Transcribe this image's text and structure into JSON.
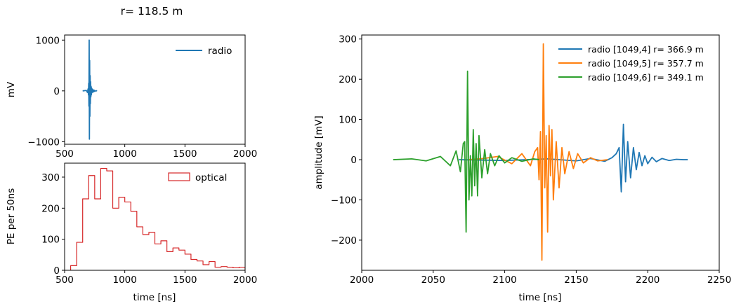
{
  "figure_title": "r= 118.5 m",
  "chart_data": [
    {
      "type": "line",
      "id": "radio-small",
      "xlabel": "",
      "ylabel": "mV",
      "xlim": [
        500,
        2000
      ],
      "ylim": [
        -1050,
        1100
      ],
      "xticks": [
        500,
        1000,
        1500,
        2000
      ],
      "yticks": [
        -1000,
        0,
        1000
      ],
      "xtick_labels": [
        "500",
        "1000",
        "1500",
        "2000"
      ],
      "ytick_labels": [
        "−1000",
        "0",
        "1000"
      ],
      "legend": "top-right",
      "series": [
        {
          "name": "radio",
          "color": "#1f77b4",
          "x": [
            650,
            680,
            690,
            695,
            698,
            700,
            702,
            704,
            706,
            708,
            710,
            712,
            714,
            716,
            718,
            720,
            722,
            724,
            726,
            728,
            730,
            735,
            740,
            745,
            750,
            760,
            770
          ],
          "y": [
            0,
            10,
            -30,
            40,
            -80,
            150,
            -300,
            1000,
            -950,
            600,
            -500,
            300,
            -250,
            180,
            -120,
            90,
            -80,
            60,
            -40,
            40,
            -30,
            25,
            -20,
            15,
            -10,
            5,
            0
          ]
        }
      ]
    },
    {
      "type": "histogram",
      "id": "optical",
      "xlabel": "time [ns]",
      "ylabel": "PE per 50ns",
      "xlim": [
        500,
        2000
      ],
      "ylim": [
        0,
        345
      ],
      "xticks": [
        500,
        1000,
        1500,
        2000
      ],
      "yticks": [
        0,
        100,
        200,
        300
      ],
      "xtick_labels": [
        "500",
        "1000",
        "1500",
        "2000"
      ],
      "ytick_labels": [
        "0",
        "100",
        "200",
        "300"
      ],
      "legend": "top-right",
      "series": [
        {
          "name": "optical",
          "color": "#d62728",
          "bin_edges": [
            550,
            600,
            650,
            700,
            750,
            800,
            850,
            900,
            950,
            1000,
            1050,
            1100,
            1150,
            1200,
            1250,
            1300,
            1350,
            1400,
            1450,
            1500,
            1550,
            1600,
            1650,
            1700,
            1750,
            1800,
            1850,
            1900,
            1950,
            2000
          ],
          "counts": [
            15,
            90,
            230,
            305,
            230,
            328,
            320,
            200,
            235,
            220,
            190,
            140,
            115,
            122,
            85,
            95,
            60,
            72,
            65,
            52,
            35,
            30,
            18,
            28,
            10,
            12,
            10,
            8,
            10
          ]
        }
      ]
    },
    {
      "type": "line",
      "id": "radio-large",
      "xlabel": "time [ns]",
      "ylabel": "amplitude [mV]",
      "xlim": [
        2000,
        2250
      ],
      "ylim": [
        -275,
        310
      ],
      "xticks": [
        2000,
        2050,
        2100,
        2150,
        2200,
        2250
      ],
      "yticks": [
        -200,
        -100,
        0,
        100,
        200,
        300
      ],
      "xtick_labels": [
        "2000",
        "2050",
        "2100",
        "2150",
        "2200",
        "2250"
      ],
      "ytick_labels": [
        "−200",
        "−100",
        "0",
        "100",
        "200",
        "300"
      ],
      "legend": "top-right",
      "series": [
        {
          "name": "radio [1049,4] r= 366.9 m",
          "color": "#1f77b4",
          "x": [
            2068,
            2100,
            2130,
            2150,
            2160,
            2170,
            2175,
            2178,
            2180,
            2181.5,
            2183,
            2184.5,
            2186,
            2188,
            2190,
            2192,
            2194,
            2196,
            2198,
            2200,
            2203,
            2206,
            2210,
            2215,
            2220,
            2225,
            2228
          ],
          "y": [
            0,
            -2,
            2,
            -3,
            3,
            -4,
            5,
            15,
            30,
            -80,
            88,
            -55,
            45,
            -45,
            30,
            -25,
            18,
            -15,
            10,
            -10,
            6,
            -5,
            3,
            -2,
            1,
            0,
            0
          ]
        },
        {
          "name": "radio [1049,5] r= 357.7 m",
          "color": "#ff7f0e",
          "x": [
            2075,
            2085,
            2095,
            2105,
            2112,
            2118,
            2121,
            2123,
            2124,
            2125,
            2126,
            2127,
            2128,
            2129,
            2130,
            2131,
            2132,
            2133,
            2134,
            2136,
            2138,
            2140,
            2142,
            2145,
            2148,
            2151,
            2155,
            2160,
            2165,
            2172
          ],
          "y": [
            0,
            3,
            8,
            -10,
            15,
            -15,
            20,
            30,
            -50,
            70,
            -250,
            288,
            -70,
            60,
            -180,
            85,
            -40,
            75,
            -100,
            45,
            -70,
            30,
            -35,
            20,
            -22,
            15,
            -8,
            5,
            -3,
            0
          ]
        },
        {
          "name": "radio [1049,6] r= 349.1 m",
          "color": "#2ca02c",
          "x": [
            2022,
            2035,
            2045,
            2055,
            2062,
            2066,
            2069,
            2071,
            2072,
            2073,
            2074,
            2075,
            2076,
            2077,
            2078,
            2079,
            2080,
            2081,
            2082,
            2084,
            2086,
            2088,
            2090,
            2093,
            2096,
            2100,
            2105,
            2112,
            2120,
            2124
          ],
          "y": [
            0,
            2,
            -3,
            8,
            -15,
            22,
            -30,
            40,
            45,
            -180,
            220,
            -100,
            10,
            -90,
            75,
            -65,
            40,
            -90,
            60,
            -45,
            25,
            -35,
            15,
            -15,
            10,
            -8,
            5,
            -4,
            2,
            0
          ]
        }
      ]
    }
  ]
}
